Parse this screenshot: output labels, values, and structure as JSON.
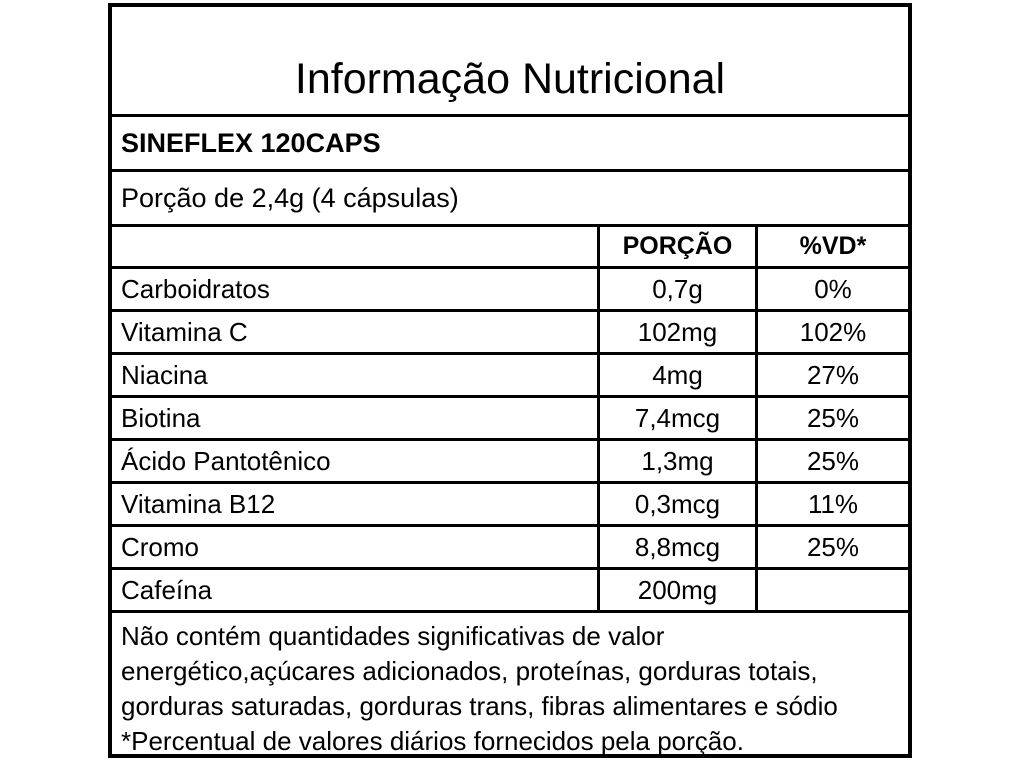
{
  "title": "Informação Nutricional",
  "product_name": "SINEFLEX 120CAPS",
  "serving_info": "Porção de 2,4g (4 cápsulas)",
  "table": {
    "headers": {
      "nutrient": "",
      "portion": "PORÇÃO",
      "daily_value": "%VD*"
    },
    "rows": [
      {
        "nutrient": "Carboidratos",
        "portion": "0,7g",
        "daily_value": "0%"
      },
      {
        "nutrient": "Vitamina C",
        "portion": "102mg",
        "daily_value": "102%"
      },
      {
        "nutrient": "Niacina",
        "portion": "4mg",
        "daily_value": "27%"
      },
      {
        "nutrient": "Biotina",
        "portion": "7,4mcg",
        "daily_value": "25%"
      },
      {
        "nutrient": "Ácido Pantotênico",
        "portion": "1,3mg",
        "daily_value": "25%"
      },
      {
        "nutrient": "Vitamina B12",
        "portion": "0,3mcg",
        "daily_value": "11%"
      },
      {
        "nutrient": "Cromo",
        "portion": "8,8mcg",
        "daily_value": "25%"
      },
      {
        "nutrient": "Cafeína",
        "portion": "200mg",
        "daily_value": ""
      }
    ]
  },
  "footnote": {
    "lines": [
      "Não contém quantidades significativas de valor",
      "energético,açúcares adicionados, proteínas, gorduras totais,",
      "gorduras saturadas, gorduras trans, fibras alimentares e sódio",
      "*Percentual de valores diários fornecidos pela porção."
    ]
  },
  "colors": {
    "border": "#000000",
    "background": "#ffffff",
    "text": "#000000"
  }
}
